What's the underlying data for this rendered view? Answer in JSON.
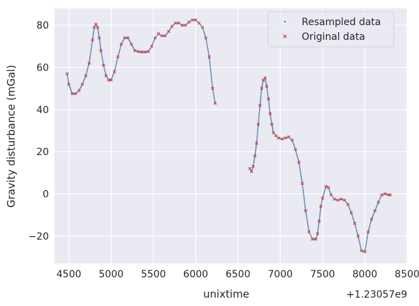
{
  "chart_data": {
    "type": "scatter",
    "xlabel": "unixtime",
    "ylabel": "Gravity disturbance (mGal)",
    "x_offset_label": "+1.23057e9",
    "xlim": [
      4330,
      8500
    ],
    "ylim": [
      -33,
      88
    ],
    "x_ticks": [
      4500,
      5000,
      5500,
      6000,
      6500,
      7000,
      7500,
      8000,
      8500
    ],
    "y_ticks": [
      -20,
      0,
      20,
      40,
      60,
      80
    ],
    "grid": true,
    "legend_position": "top-right",
    "colors": {
      "background": "#eaeaf2",
      "grid": "#ffffff",
      "resampled": "#4c72b0",
      "original": "#c44e52"
    },
    "series": [
      {
        "name": "Resampled data",
        "marker": "dot",
        "segments": [
          {
            "x": [
              4480,
              4500,
              4540,
              4580,
              4620,
              4660,
              4700,
              4740,
              4780,
              4800,
              4820,
              4840,
              4860,
              4880,
              4910,
              4940,
              4970,
              5000,
              5040,
              5080,
              5120,
              5160,
              5200,
              5240,
              5280,
              5320,
              5360,
              5400,
              5440,
              5480,
              5520,
              5560,
              5600,
              5640,
              5680,
              5720,
              5760,
              5800,
              5840,
              5880,
              5920,
              5960,
              6000,
              6040,
              6080,
              6120,
              6160,
              6200,
              6230
            ],
            "y": [
              57,
              52,
              47.5,
              47.5,
              49,
              52,
              56,
              62,
              73,
              79,
              80.5,
              79,
              74,
              68,
              61,
              56,
              54,
              54,
              58,
              65,
              71,
              74,
              74,
              71,
              68,
              67.5,
              67.3,
              67.3,
              67.5,
              70,
              74,
              76,
              75,
              75,
              77,
              79.5,
              81,
              81,
              80,
              80,
              81.5,
              82.5,
              82.5,
              81,
              79,
              74,
              65,
              50,
              43
            ]
          },
          {
            "x": [
              6640,
              6660,
              6680,
              6700,
              6720,
              6740,
              6760,
              6780,
              6800,
              6820,
              6840,
              6860,
              6880,
              6900,
              6920,
              6950,
              6980,
              7020,
              7060,
              7100,
              7140,
              7180,
              7220,
              7260,
              7300,
              7340,
              7380,
              7420,
              7440,
              7460,
              7480,
              7500,
              7540,
              7570,
              7600,
              7640,
              7680,
              7720,
              7760,
              7800,
              7840,
              7880,
              7920,
              7960,
              8000,
              8040,
              8080,
              8120,
              8160,
              8200,
              8240,
              8280,
              8300
            ],
            "y": [
              12,
              10.5,
              13,
              18,
              24,
              33,
              42,
              50,
              54,
              55,
              51,
              45,
              38,
              33,
              29,
              27.5,
              26.5,
              26,
              26.5,
              27,
              25.5,
              21,
              15,
              5,
              -8,
              -18,
              -21.5,
              -21.5,
              -19,
              -13,
              -6,
              -2,
              3.5,
              3,
              -0.5,
              -2.5,
              -3,
              -2.5,
              -3,
              -5,
              -9,
              -14,
              -20,
              -27,
              -27.5,
              -18,
              -12,
              -8,
              -4,
              -0.5,
              0,
              -0.5,
              -0.5
            ]
          }
        ]
      },
      {
        "name": "Original data",
        "marker": "x",
        "segments": [
          {
            "x": [
              4480,
              4500,
              4540,
              4580,
              4620,
              4660,
              4700,
              4740,
              4780,
              4800,
              4820,
              4840,
              4860,
              4880,
              4910,
              4940,
              4970,
              5000,
              5040,
              5080,
              5120,
              5160,
              5200,
              5240,
              5280,
              5320,
              5360,
              5400,
              5440,
              5480,
              5520,
              5560,
              5600,
              5640,
              5680,
              5720,
              5760,
              5800,
              5840,
              5880,
              5920,
              5960,
              6000,
              6040,
              6080,
              6120,
              6160,
              6200,
              6230
            ],
            "y": [
              57,
              52,
              47.5,
              47.5,
              49,
              52,
              56,
              62,
              73,
              79,
              80.5,
              79,
              74,
              68,
              61,
              56,
              54,
              54,
              58,
              65,
              71,
              74,
              74,
              71,
              68,
              67.5,
              67.3,
              67.3,
              67.5,
              70,
              74,
              76,
              75,
              75,
              77,
              79.5,
              81,
              81,
              80,
              80,
              81.5,
              82.5,
              82.5,
              81,
              79,
              74,
              65,
              50,
              43
            ]
          },
          {
            "x": [
              6640,
              6660,
              6680,
              6700,
              6720,
              6740,
              6760,
              6780,
              6800,
              6820,
              6840,
              6860,
              6880,
              6900,
              6920,
              6950,
              6980,
              7020,
              7060,
              7100,
              7140,
              7180,
              7220,
              7260,
              7300,
              7340,
              7380,
              7420,
              7440,
              7460,
              7480,
              7500,
              7540,
              7570,
              7600,
              7640,
              7680,
              7720,
              7760,
              7800,
              7840,
              7880,
              7920,
              7960,
              8000,
              8040,
              8080,
              8120,
              8160,
              8200,
              8240,
              8280,
              8300
            ],
            "y": [
              12,
              10.5,
              13,
              18,
              24,
              33,
              42,
              50,
              54,
              55,
              51,
              45,
              38,
              33,
              29,
              27.5,
              26.5,
              26,
              26.5,
              27,
              25.5,
              21,
              15,
              5,
              -8,
              -18,
              -21.5,
              -21.5,
              -19,
              -13,
              -6,
              -2,
              3.5,
              3,
              -0.5,
              -2.5,
              -3,
              -2.5,
              -3,
              -5,
              -9,
              -14,
              -20,
              -27,
              -27.5,
              -18,
              -12,
              -8,
              -4,
              -0.5,
              0,
              -0.5,
              -0.5
            ]
          }
        ]
      }
    ]
  }
}
